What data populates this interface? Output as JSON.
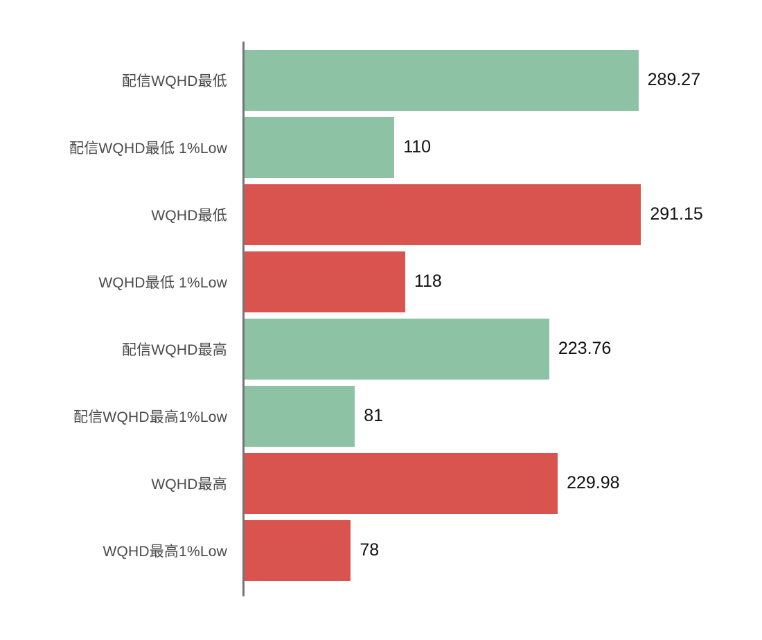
{
  "chart_data": {
    "type": "bar",
    "orientation": "horizontal",
    "title": "",
    "xlabel": "",
    "ylabel": "",
    "grid": false,
    "legend_position": "none",
    "xlim": [
      0,
      380
    ],
    "categories": [
      "配信WQHD最低",
      "配信WQHD最低 1%Low",
      "WQHD最低",
      "WQHD最低 1%Low",
      "配信WQHD最高",
      "配信WQHD最高1%Low",
      "WQHD最高",
      "WQHD最高1%Low"
    ],
    "values": [
      289.27,
      110,
      291.15,
      118,
      223.76,
      81,
      229.98,
      78
    ],
    "value_labels": [
      "289.27",
      "110",
      "291.15",
      "118",
      "223.76",
      "81",
      "229.98",
      "78"
    ],
    "bar_colors": [
      "green",
      "green",
      "red",
      "red",
      "green",
      "green",
      "red",
      "red"
    ]
  },
  "colors": {
    "green": "#8DC3A4",
    "red": "#D9534F",
    "axis": "#757575",
    "label_text": "#4A4A4A",
    "value_text": "#111111"
  }
}
